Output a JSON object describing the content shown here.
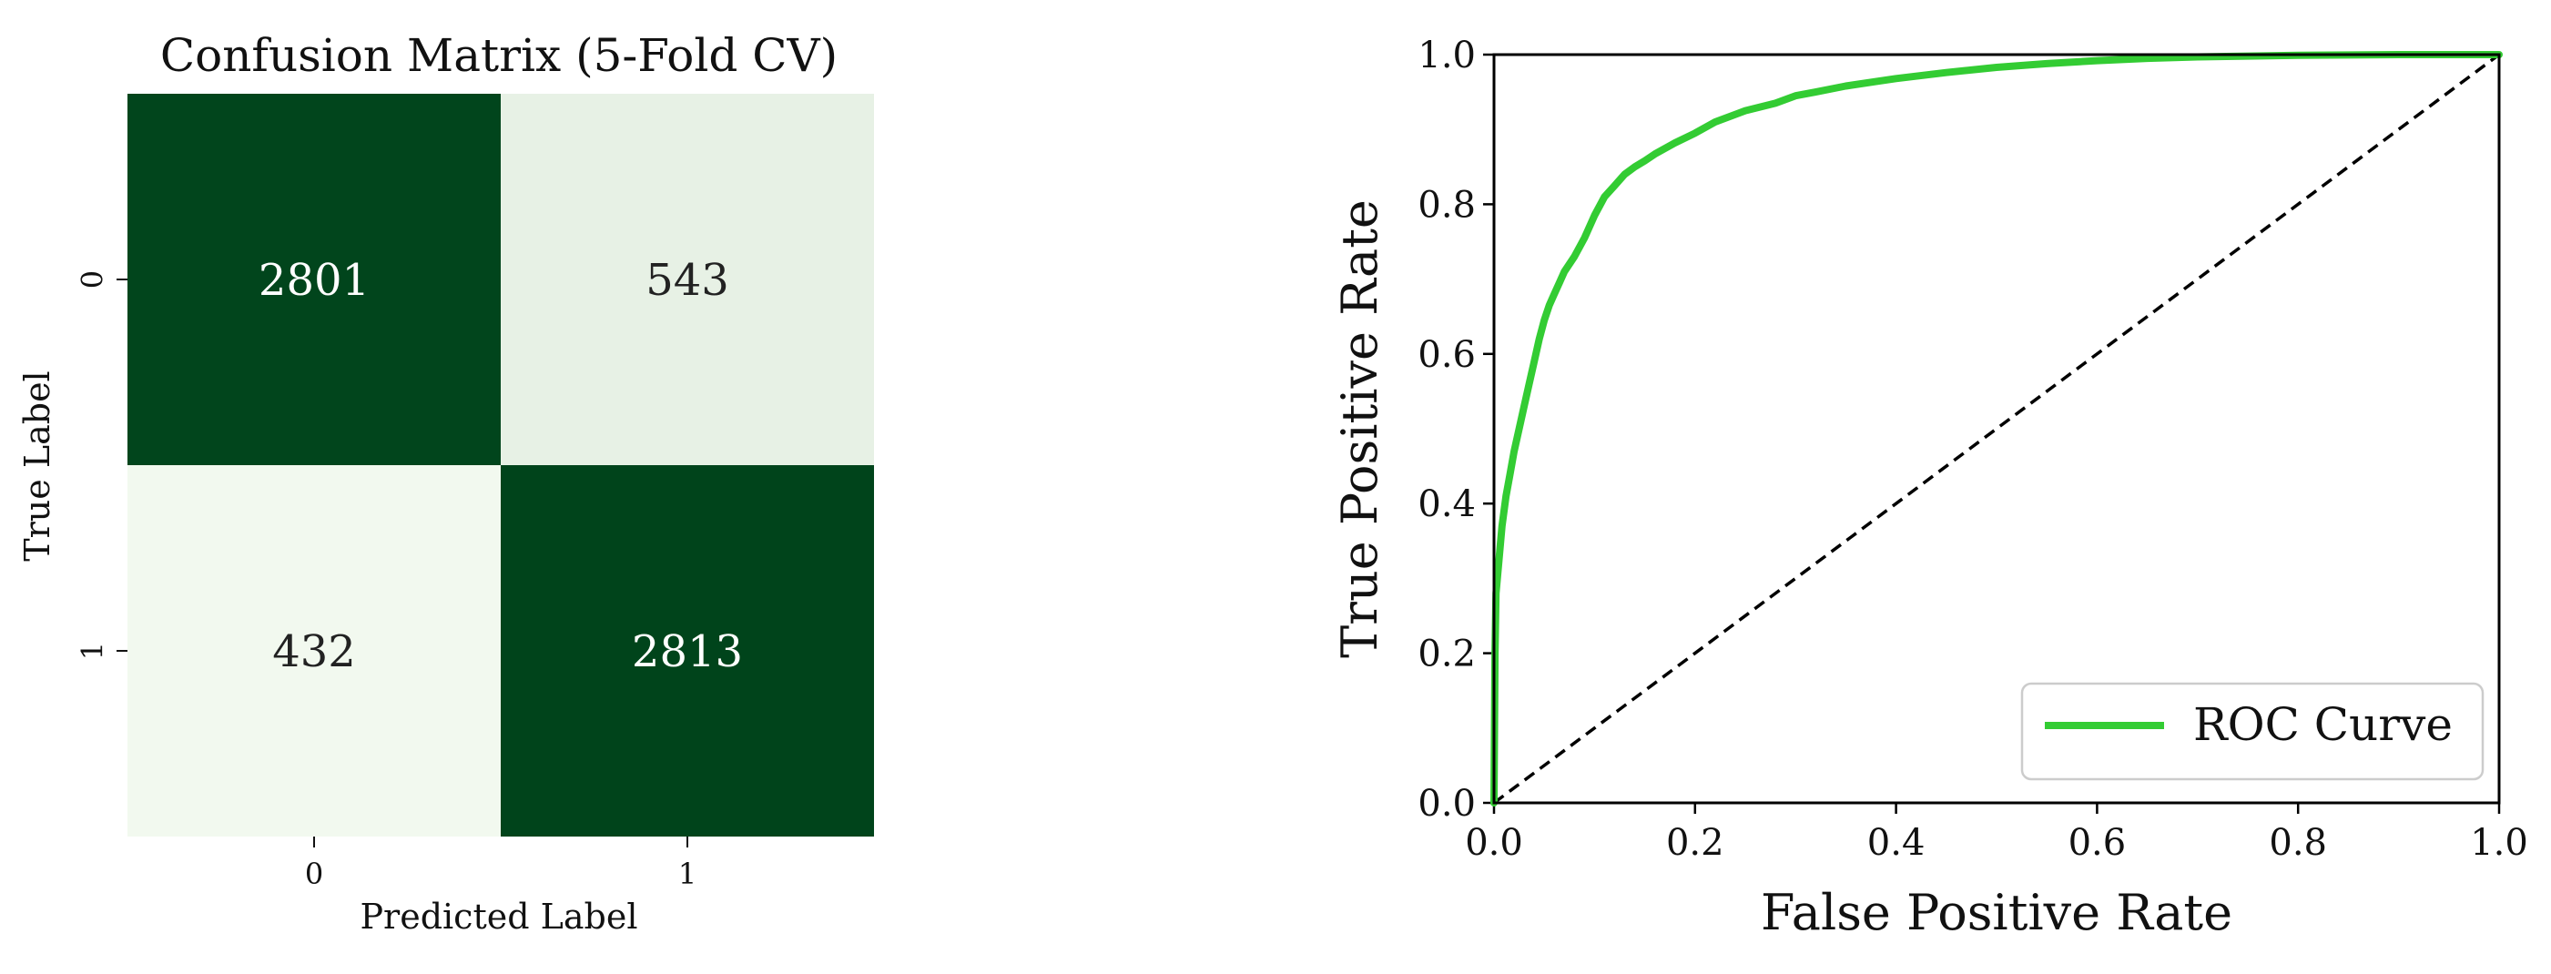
{
  "chart_data": [
    {
      "type": "heatmap",
      "title": "Confusion Matrix (5-Fold CV)",
      "xlabel": "Predicted Label",
      "ylabel": "True Label",
      "x_tick_labels": [
        "0",
        "1"
      ],
      "y_tick_labels": [
        "0",
        "1"
      ],
      "values": [
        [
          2801,
          543
        ],
        [
          432,
          2813
        ]
      ],
      "cell_labels": [
        [
          "2801",
          "543"
        ],
        [
          "432",
          "2813"
        ]
      ],
      "colormap": {
        "low": "#f2f9ef",
        "high": "#00441b"
      },
      "annotation_colors": {
        "on_dark": "#ffffff",
        "on_light": "#222222"
      }
    },
    {
      "type": "line",
      "title": "",
      "xlabel": "False Positive Rate",
      "ylabel": "True Positive Rate",
      "xlim": [
        0,
        1
      ],
      "ylim": [
        0,
        1
      ],
      "x_ticks": [
        0,
        0.2,
        0.4,
        0.6,
        0.8,
        1
      ],
      "y_ticks": [
        0,
        0.2,
        0.4,
        0.6,
        0.8,
        1
      ],
      "x_tick_labels": [
        "0.0",
        "0.2",
        "0.4",
        "0.6",
        "0.8",
        "1.0"
      ],
      "y_tick_labels": [
        "0.0",
        "0.2",
        "0.4",
        "0.6",
        "0.8",
        "1.0"
      ],
      "grid": false,
      "legend_position": "lower-right",
      "series": [
        {
          "name": "ROC Curve",
          "color": "#33cc33",
          "style": "solid",
          "x": [
            0,
            0.001,
            0.002,
            0.004,
            0.006,
            0.008,
            0.012,
            0.016,
            0.02,
            0.025,
            0.03,
            0.035,
            0.04,
            0.045,
            0.05,
            0.055,
            0.06,
            0.065,
            0.07,
            0.08,
            0.09,
            0.1,
            0.11,
            0.12,
            0.13,
            0.14,
            0.15,
            0.16,
            0.18,
            0.2,
            0.22,
            0.25,
            0.28,
            0.3,
            0.32,
            0.35,
            0.38,
            0.4,
            0.45,
            0.5,
            0.55,
            0.6,
            0.65,
            0.7,
            0.75,
            0.8,
            0.85,
            0.9,
            0.95,
            1.0
          ],
          "y": [
            0,
            0.2,
            0.28,
            0.31,
            0.34,
            0.37,
            0.41,
            0.44,
            0.47,
            0.5,
            0.53,
            0.56,
            0.59,
            0.62,
            0.645,
            0.665,
            0.68,
            0.695,
            0.71,
            0.73,
            0.755,
            0.785,
            0.81,
            0.825,
            0.84,
            0.85,
            0.858,
            0.867,
            0.882,
            0.895,
            0.91,
            0.925,
            0.935,
            0.945,
            0.95,
            0.958,
            0.964,
            0.968,
            0.976,
            0.983,
            0.988,
            0.992,
            0.995,
            0.997,
            0.998,
            0.999,
            0.9995,
            1.0,
            1.0,
            1.0
          ]
        },
        {
          "name": "",
          "color": "#000000",
          "style": "dashed",
          "x": [
            0,
            1
          ],
          "y": [
            0,
            1
          ]
        }
      ]
    }
  ]
}
